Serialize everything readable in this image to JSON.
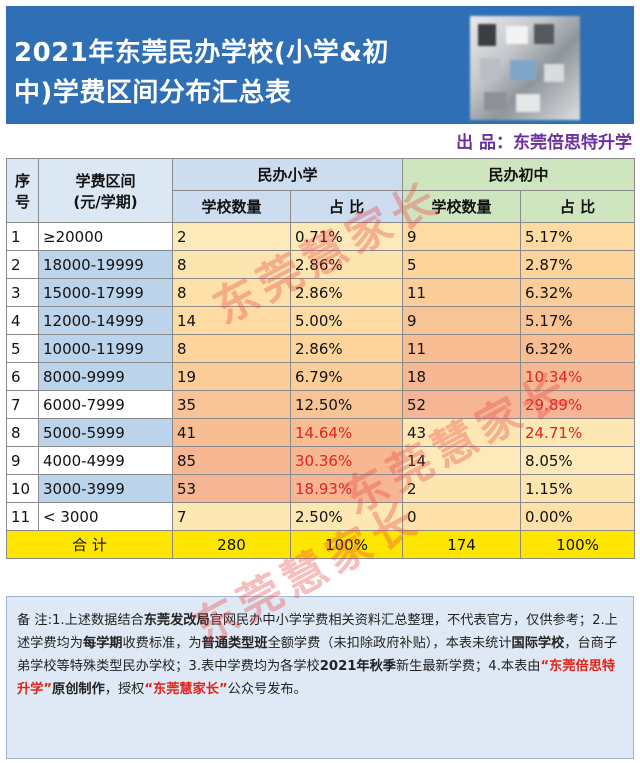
{
  "header": {
    "title_line1": "2021年东莞民办学校(小学&初",
    "title_line2": "中)学费区间分布汇总表",
    "producer": "出 品：东莞倍思特升学"
  },
  "table": {
    "col_index": "序号",
    "col_index_line1": "序",
    "col_index_line2": "号",
    "col_range_line1": "学费区间",
    "col_range_line2": "(元/学期)",
    "group_primary": "民办小学",
    "group_middle": "民办初中",
    "col_count": "学校数量",
    "col_ratio": "占 比",
    "rows": [
      {
        "n": "1",
        "range": "≥20000",
        "p_cnt": "2",
        "p_pct": "0.71%",
        "m_cnt": "9",
        "m_pct": "5.17%"
      },
      {
        "n": "2",
        "range": "18000-19999",
        "p_cnt": "8",
        "p_pct": "2.86%",
        "m_cnt": "5",
        "m_pct": "2.87%"
      },
      {
        "n": "3",
        "range": "15000-17999",
        "p_cnt": "8",
        "p_pct": "2.86%",
        "m_cnt": "11",
        "m_pct": "6.32%"
      },
      {
        "n": "4",
        "range": "12000-14999",
        "p_cnt": "14",
        "p_pct": "5.00%",
        "m_cnt": "9",
        "m_pct": "5.17%"
      },
      {
        "n": "5",
        "range": "10000-11999",
        "p_cnt": "8",
        "p_pct": "2.86%",
        "m_cnt": "11",
        "m_pct": "6.32%"
      },
      {
        "n": "6",
        "range": "8000-9999",
        "p_cnt": "19",
        "p_pct": "6.79%",
        "m_cnt": "18",
        "m_pct": "10.34%"
      },
      {
        "n": "7",
        "range": "6000-7999",
        "p_cnt": "35",
        "p_pct": "12.50%",
        "m_cnt": "52",
        "m_pct": "29.89%"
      },
      {
        "n": "8",
        "range": "5000-5999",
        "p_cnt": "41",
        "p_pct": "14.64%",
        "m_cnt": "43",
        "m_pct": "24.71%"
      },
      {
        "n": "9",
        "range": "4000-4999",
        "p_cnt": "85",
        "p_pct": "30.36%",
        "m_cnt": "14",
        "m_pct": "8.05%"
      },
      {
        "n": "10",
        "range": "3000-3999",
        "p_cnt": "53",
        "p_pct": "18.93%",
        "m_cnt": "2",
        "m_pct": "1.15%"
      },
      {
        "n": "11",
        "range": "< 3000",
        "p_cnt": "7",
        "p_pct": "2.50%",
        "m_cnt": "0",
        "m_pct": "0.00%"
      }
    ],
    "total": {
      "label": "合 计",
      "p_cnt": "280",
      "p_pct": "100%",
      "m_cnt": "174",
      "m_pct": "100%"
    }
  },
  "notes": {
    "s1": "备 注:1.上述数据结合",
    "s2": "东莞发改局",
    "s3": "官网民办中小学学费相关资料汇总整理，不代表官方，仅供参考；2.上述学费均为",
    "s4": "每学期",
    "s5": "收费标准，为",
    "s6": "普通类型班",
    "s7": "全额学费（未扣除政府补贴），本表未统计",
    "s8": "国际学校",
    "s9": "，台商子弟学校等特殊类型民办学校；3.表中学费均为各学校",
    "s10": "2021年秋季",
    "s11": "新生最新学费；4.本表由",
    "s12": "“东莞倍思特升学”",
    "s13": "原创制作",
    "s14": "，授权",
    "s15": "“东莞慧家长”",
    "s16": "公众号发布。"
  },
  "watermark": {
    "text1": "东莞慧家长",
    "text2": "东莞慧家长",
    "text3": "东莞慧家长"
  },
  "colors": {
    "header_bg": "#2f6fb6",
    "producer": "#6b2fa1",
    "highlight_red": "#e2231a",
    "total_row": "#ffe600"
  }
}
